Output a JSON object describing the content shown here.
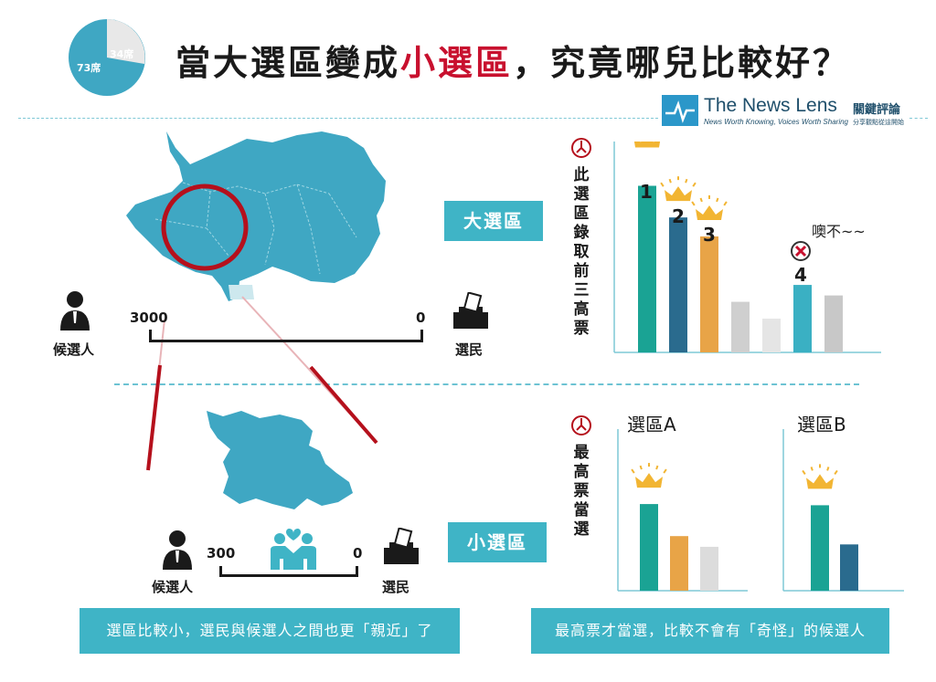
{
  "header": {
    "pie_seats_a": "73席",
    "pie_seats_b": "34席",
    "title_part1": "當大選區變成",
    "title_highlight": "小選區",
    "title_part2": "，究竟哪兒比較好？",
    "logo_name": "The News Lens",
    "logo_cn": "關鍵評論",
    "logo_tagline": "News Worth Knowing, Voices Worth Sharing",
    "logo_tagline_cn": "分享觀點從這開始"
  },
  "large_district": {
    "tag": "大選區",
    "candidate_label": "候選人",
    "voter_label": "選民",
    "scale_left": "3000",
    "scale_right": "0",
    "vertical_label": "此選區錄取前三高票",
    "ranks": [
      "1",
      "2",
      "3",
      "4"
    ],
    "remark": "噢不~~",
    "bars": [
      {
        "value": 0.79,
        "color": "#1aa394"
      },
      {
        "value": 0.64,
        "color": "#2a6b8e"
      },
      {
        "value": 0.55,
        "color": "#e8a447"
      },
      {
        "value": 0.24,
        "color": "#cfcfcf"
      },
      {
        "value": 0.16,
        "color": "#e5e5e5"
      },
      {
        "value": 0.32,
        "color": "#3ab0c3"
      },
      {
        "value": 0.27,
        "color": "#c8c8c8"
      }
    ]
  },
  "small_district": {
    "tag": "小選區",
    "candidate_label": "候選人",
    "voter_label": "選民",
    "scale_left": "300",
    "scale_right": "0",
    "vertical_label": "最高票當選",
    "district_a": "選區A",
    "district_b": "選區B",
    "bars_a": [
      {
        "value": 0.73,
        "color": "#1aa394"
      },
      {
        "value": 0.46,
        "color": "#e8a447"
      },
      {
        "value": 0.37,
        "color": "#dcdcdc"
      }
    ],
    "bars_b": [
      {
        "value": 0.72,
        "color": "#1aa394"
      },
      {
        "value": 0.39,
        "color": "#2a6b8e"
      }
    ]
  },
  "captions": {
    "left": "選區比較小，選民與候選人之間也更「親近」了",
    "right": "最高票才當選，比較不會有「奇怪」的候選人"
  },
  "colors": {
    "accent": "#3fb4c6",
    "map": "#3fa7c3",
    "highlight_red": "#c8102e"
  }
}
